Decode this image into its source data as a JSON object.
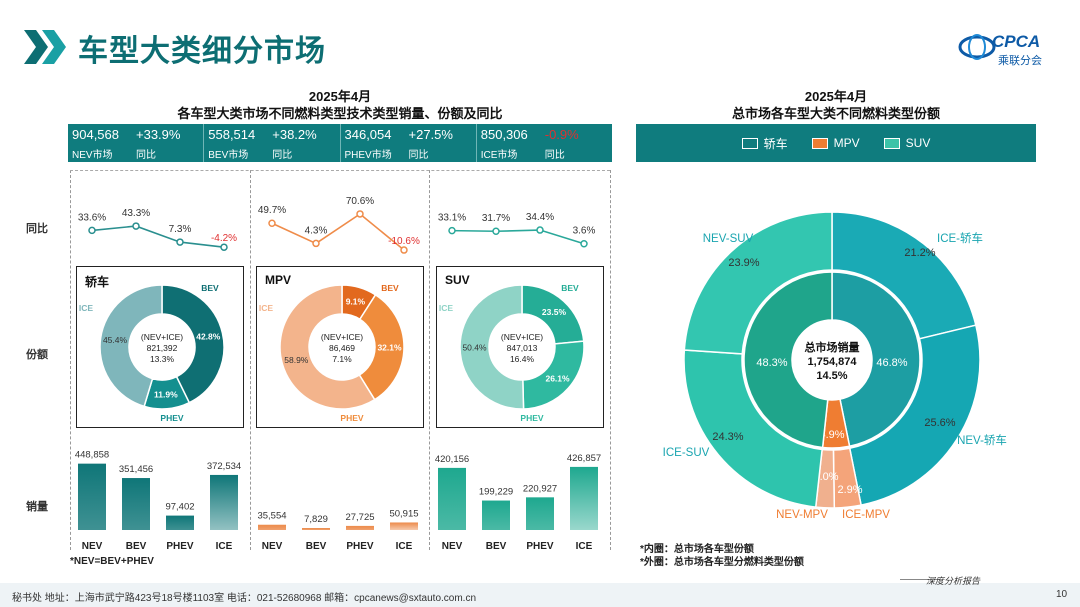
{
  "header": {
    "title": "车型大类细分市场",
    "logo_text": "CPCA",
    "logo_cn": "乘联分会"
  },
  "left_chart": {
    "title_line1": "2025年4月",
    "title_line2": "各车型大类市场不同燃料类型技术类型销量、份额及同比"
  },
  "right_chart": {
    "title_line1": "2025年4月",
    "title_line2": "总市场各车型大类不同燃料类型份额"
  },
  "kpis": [
    {
      "value": "904,568",
      "yoy": "+33.9%",
      "label": "NEV市场",
      "yoy_label": "同比",
      "yoy_color": "#ffffff"
    },
    {
      "value": "558,514",
      "yoy": "+38.2%",
      "label": "BEV市场",
      "yoy_label": "同比",
      "yoy_color": "#ffffff"
    },
    {
      "value": "346,054",
      "yoy": "+27.5%",
      "label": "PHEV市场",
      "yoy_label": "同比",
      "yoy_color": "#ffffff"
    },
    {
      "value": "850,306",
      "yoy": "-0.9%",
      "label": "ICE市场",
      "yoy_label": "同比",
      "yoy_color": "#e03030"
    }
  ],
  "row_labels": {
    "yoy": "同比",
    "share": "份额",
    "sales": "销量"
  },
  "categories": [
    "NEV",
    "BEV",
    "PHEV",
    "ICE"
  ],
  "legend": [
    {
      "label": "轿车",
      "color": "#1aa5b0"
    },
    {
      "label": "MPV",
      "color": "#ef7d32"
    },
    {
      "label": "SUV",
      "color": "#3cc3a8"
    }
  ],
  "notes": {
    "formula": "*NEV=BEV+PHEV",
    "inner": "*内圈：总市场各车型份额",
    "outer": "*外圈：总市场各车型分燃料类型份额"
  },
  "footer": {
    "text": "秘书处   地址：上海市武宁路423号18号楼1103室   电话：021-52680968   邮箱：cpcanews@sxtauto.com.cn",
    "right": "深度分析报告",
    "page": "10"
  },
  "chart_data": [
    {
      "type": "line",
      "panel": "轿车",
      "categories": [
        "NEV",
        "BEV",
        "PHEV",
        "ICE"
      ],
      "values": [
        33.6,
        43.3,
        7.3,
        -4.2
      ],
      "labels": [
        "33.6%",
        "43.3%",
        "7.3%",
        "-4.2%"
      ],
      "color": "#2a8f8f"
    },
    {
      "type": "line",
      "panel": "MPV",
      "categories": [
        "NEV",
        "BEV",
        "PHEV",
        "ICE"
      ],
      "values": [
        49.7,
        4.3,
        70.6,
        -10.6
      ],
      "labels": [
        "49.7%",
        "4.3%",
        "70.6%",
        "-10.6%"
      ],
      "color": "#ef8c4a"
    },
    {
      "type": "line",
      "panel": "SUV",
      "categories": [
        "NEV",
        "BEV",
        "PHEV",
        "ICE"
      ],
      "values": [
        33.1,
        31.7,
        34.4,
        3.6
      ],
      "labels": [
        "33.1%",
        "31.7%",
        "34.4%",
        "3.6%"
      ],
      "color": "#2aa89a"
    },
    {
      "type": "pie",
      "panel": "轿车",
      "name": "轿车",
      "slices": [
        {
          "label": "BEV",
          "value": 42.8,
          "text": "42.8%",
          "color": "#0f6f73"
        },
        {
          "label": "PHEV",
          "value": 11.9,
          "text": "11.9%",
          "color": "#148f8f"
        },
        {
          "label": "ICE",
          "value": 45.4,
          "text": "45.4%",
          "color": "#7fb6bb"
        }
      ],
      "center": [
        "(NEV+ICE)",
        "821,392",
        "13.3%"
      ]
    },
    {
      "type": "pie",
      "panel": "MPV",
      "name": "MPV",
      "slices": [
        {
          "label": "BEV",
          "value": 9.1,
          "text": "9.1%",
          "color": "#e2691e"
        },
        {
          "label": "PHEV",
          "value": 32.1,
          "text": "32.1%",
          "color": "#ef8c3c"
        },
        {
          "label": "ICE",
          "value": 58.9,
          "text": "58.9%",
          "color": "#f3b48c"
        }
      ],
      "center": [
        "(NEV+ICE)",
        "86,469",
        "7.1%"
      ]
    },
    {
      "type": "pie",
      "panel": "SUV",
      "name": "SUV",
      "slices": [
        {
          "label": "BEV",
          "value": 23.5,
          "text": "23.5%",
          "color": "#25ad96"
        },
        {
          "label": "PHEV",
          "value": 26.1,
          "text": "26.1%",
          "color": "#2fb9a0"
        },
        {
          "label": "ICE",
          "value": 50.4,
          "text": "50.4%",
          "color": "#8fd3c6"
        }
      ],
      "center": [
        "(NEV+ICE)",
        "847,013",
        "16.4%"
      ]
    },
    {
      "type": "bar",
      "panel": "轿车",
      "categories": [
        "NEV",
        "BEV",
        "PHEV",
        "ICE"
      ],
      "values": [
        448858,
        351456,
        97402,
        372534
      ],
      "labels": [
        "448,858",
        "351,456",
        "97,402",
        "372,534"
      ],
      "color": "#0f7678"
    },
    {
      "type": "bar",
      "panel": "MPV",
      "categories": [
        "NEV",
        "BEV",
        "PHEV",
        "ICE"
      ],
      "values": [
        35554,
        7829,
        27725,
        50915
      ],
      "labels": [
        "35,554",
        "7,829",
        "27,725",
        "50,915"
      ],
      "color": "#ec8a4a"
    },
    {
      "type": "bar",
      "panel": "SUV",
      "categories": [
        "NEV",
        "BEV",
        "PHEV",
        "ICE"
      ],
      "values": [
        420156,
        199229,
        220927,
        426857
      ],
      "labels": [
        "420,156",
        "199,229",
        "220,927",
        "426,857"
      ],
      "color": "#1ea88f"
    },
    {
      "type": "pie",
      "name": "总市场销量",
      "center": [
        "总市场销量",
        "1,754,874",
        "14.5%"
      ],
      "inner": [
        {
          "label": "轿车",
          "value": 46.8,
          "text": "46.8%",
          "color": "#1d9ea3"
        },
        {
          "label": "MPV",
          "value": 4.9,
          "text": "4.9%",
          "color": "#ef7d32"
        },
        {
          "label": "SUV",
          "value": 48.3,
          "text": "48.3%",
          "color": "#1fa58b"
        }
      ],
      "outer": [
        {
          "label": "ICE-轿车",
          "value": 21.2,
          "text": "21.2%",
          "color": "#1aaab5"
        },
        {
          "label": "NEV-轿车",
          "value": 25.6,
          "text": "25.6%",
          "color": "#15a7b3"
        },
        {
          "label": "ICE-MPV",
          "value": 2.9,
          "text": "2.9%",
          "color": "#f4a47a"
        },
        {
          "label": "NEV-MPV",
          "value": 2.0,
          "text": "2.0%",
          "color": "#f0b08e"
        },
        {
          "label": "ICE-SUV",
          "value": 24.3,
          "text": "24.3%",
          "color": "#2ec4ad"
        },
        {
          "label": "NEV-SUV",
          "value": 23.9,
          "text": "23.9%",
          "color": "#33c6b0"
        }
      ]
    }
  ]
}
